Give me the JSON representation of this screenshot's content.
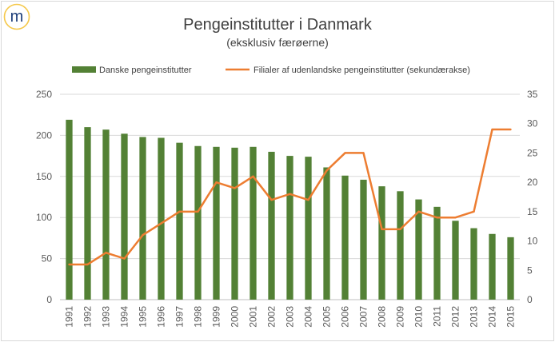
{
  "logo": {
    "letter": "m",
    "ring_color": "#f5c84a",
    "letter_color": "#1f3f7a"
  },
  "chart_data": {
    "type": "bar+line",
    "title": "Pengeinstitutter i Danmark",
    "subtitle": "(eksklusiv færøerne)",
    "categories": [
      "1991",
      "1992",
      "1993",
      "1994",
      "1995",
      "1996",
      "1997",
      "1998",
      "1999",
      "2000",
      "2001",
      "2002",
      "2003",
      "2004",
      "2005",
      "2006",
      "2007",
      "2008",
      "2009",
      "2010",
      "2011",
      "2012",
      "2013",
      "2014",
      "2015"
    ],
    "series": [
      {
        "name": "Danske pengeinstitutter",
        "type": "bar",
        "axis": "primary",
        "color": "#538135",
        "values": [
          219,
          210,
          207,
          202,
          198,
          197,
          191,
          187,
          186,
          185,
          186,
          180,
          175,
          174,
          161,
          151,
          146,
          138,
          132,
          122,
          113,
          96,
          87,
          80,
          76
        ]
      },
      {
        "name": "Filialer af udenlandske pengeinstitutter (sekundærakse)",
        "type": "line",
        "axis": "secondary",
        "color": "#ed7d31",
        "values": [
          6,
          6,
          8,
          7,
          11,
          13,
          15,
          15,
          20,
          19,
          21,
          17,
          18,
          17,
          22,
          25,
          25,
          12,
          12,
          15,
          14,
          14,
          15,
          29,
          29
        ]
      }
    ],
    "y_primary": {
      "min": 0,
      "max": 250,
      "ticks": [
        0,
        50,
        100,
        150,
        200,
        250
      ]
    },
    "y_secondary": {
      "min": 0,
      "max": 35,
      "ticks": [
        0,
        5,
        10,
        15,
        20,
        25,
        30,
        35
      ]
    },
    "grid": true,
    "legend_position": "top"
  }
}
